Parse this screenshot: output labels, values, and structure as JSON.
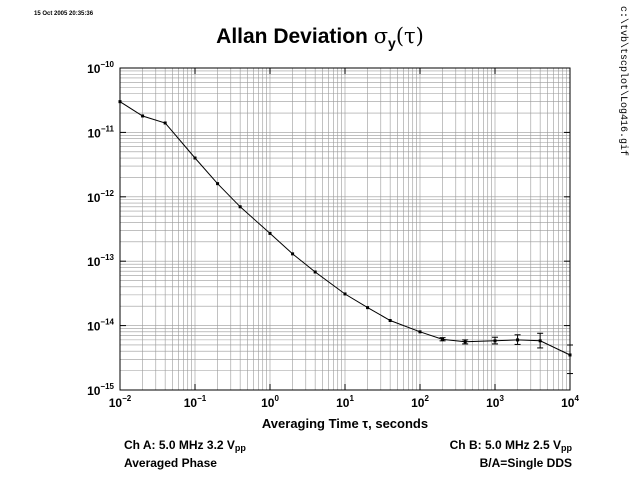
{
  "header": {
    "timestamp": "15 Oct 2005 20:35:36",
    "side_path": "c:\\tvb\\tscplot\\Log416.gif",
    "title_text": "Allan Deviation ",
    "title_sigma": "σ",
    "title_sub": "y",
    "title_arg": "(τ)"
  },
  "info": {
    "ch_a_prefix": "Ch A: 5.0 MHz 3.2 V",
    "ch_a_sub": "pp",
    "ch_a_line2": "Averaged Phase",
    "ch_b_prefix": "Ch B: 5.0 MHz 2.5 V",
    "ch_b_sub": "pp",
    "ch_b_line2": "B/A=Single DDS"
  },
  "chart_data": {
    "type": "line",
    "title": "Allan Deviation σy(τ)",
    "xlabel": "Averaging Time τ, seconds",
    "ylabel": "",
    "xscale": "log",
    "yscale": "log",
    "xlim": [
      0.01,
      10000
    ],
    "ylim": [
      1e-15,
      1e-10
    ],
    "grid": true,
    "x_ticks": [
      {
        "base": "10",
        "exp": "−2"
      },
      {
        "base": "10",
        "exp": "−1"
      },
      {
        "base": "10",
        "exp": "0"
      },
      {
        "base": "10",
        "exp": "1"
      },
      {
        "base": "10",
        "exp": "2"
      },
      {
        "base": "10",
        "exp": "3"
      },
      {
        "base": "10",
        "exp": "4"
      }
    ],
    "y_ticks": [
      {
        "base": "10",
        "exp": "−10"
      },
      {
        "base": "10",
        "exp": "−11"
      },
      {
        "base": "10",
        "exp": "−12"
      },
      {
        "base": "10",
        "exp": "−13"
      },
      {
        "base": "10",
        "exp": "−14"
      },
      {
        "base": "10",
        "exp": "−15"
      }
    ],
    "series": [
      {
        "x": [
          0.01,
          0.02,
          0.04,
          0.1,
          0.2,
          0.4,
          1,
          2,
          4,
          10,
          20,
          40,
          100,
          200,
          400,
          1000,
          2000,
          4000,
          10000
        ],
        "y": [
          3e-11,
          1.8e-11,
          1.4e-11,
          4e-12,
          1.6e-12,
          7e-13,
          2.7e-13,
          1.3e-13,
          6.8e-14,
          3.1e-14,
          1.9e-14,
          1.2e-14,
          8e-15,
          6.1e-15,
          5.6e-15,
          5.8e-15,
          6e-15,
          5.8e-15,
          3.5e-15
        ],
        "err_lo": [
          null,
          null,
          null,
          null,
          null,
          null,
          null,
          null,
          null,
          null,
          null,
          null,
          null,
          5.8e-15,
          5.2e-15,
          5.2e-15,
          5.1e-15,
          4.5e-15,
          1.8e-15
        ],
        "err_hi": [
          null,
          null,
          null,
          null,
          null,
          null,
          null,
          null,
          null,
          null,
          null,
          null,
          null,
          6.5e-15,
          6e-15,
          6.6e-15,
          7.2e-15,
          7.6e-15,
          5e-15
        ]
      }
    ]
  }
}
